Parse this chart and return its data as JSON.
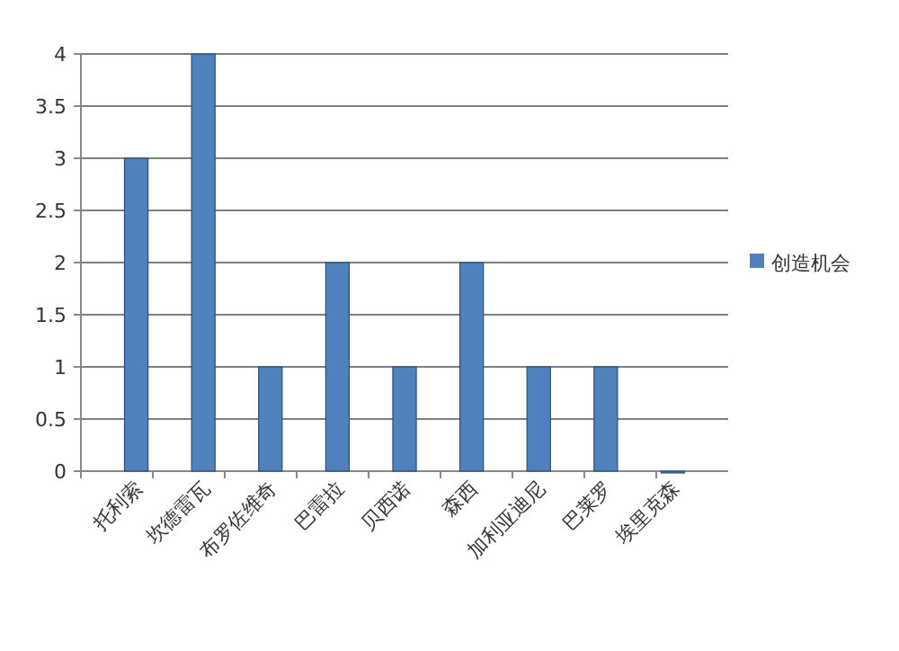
{
  "chart_data": {
    "type": "bar",
    "categories": [
      "托利索",
      "坎德雷瓦",
      "布罗佐维奇",
      "巴雷拉",
      "贝西诺",
      "森西",
      "加利亚迪尼",
      "巴莱罗",
      "埃里克森"
    ],
    "series": [
      {
        "name": "创造机会",
        "color": "#4f81bd",
        "values": [
          3,
          4,
          1,
          2,
          1,
          2,
          1,
          1,
          0
        ]
      }
    ],
    "ylim": [
      0,
      4
    ],
    "yticks": [
      0,
      {
        "value": 0.5,
        "label": "0.5"
      },
      1,
      {
        "value": 1.5,
        "label": "1.5"
      },
      2,
      {
        "value": 2.5,
        "label": "2.5"
      },
      3,
      {
        "value": 3.5,
        "label": "3.5"
      },
      4
    ],
    "grid": "y",
    "legend": "right"
  }
}
